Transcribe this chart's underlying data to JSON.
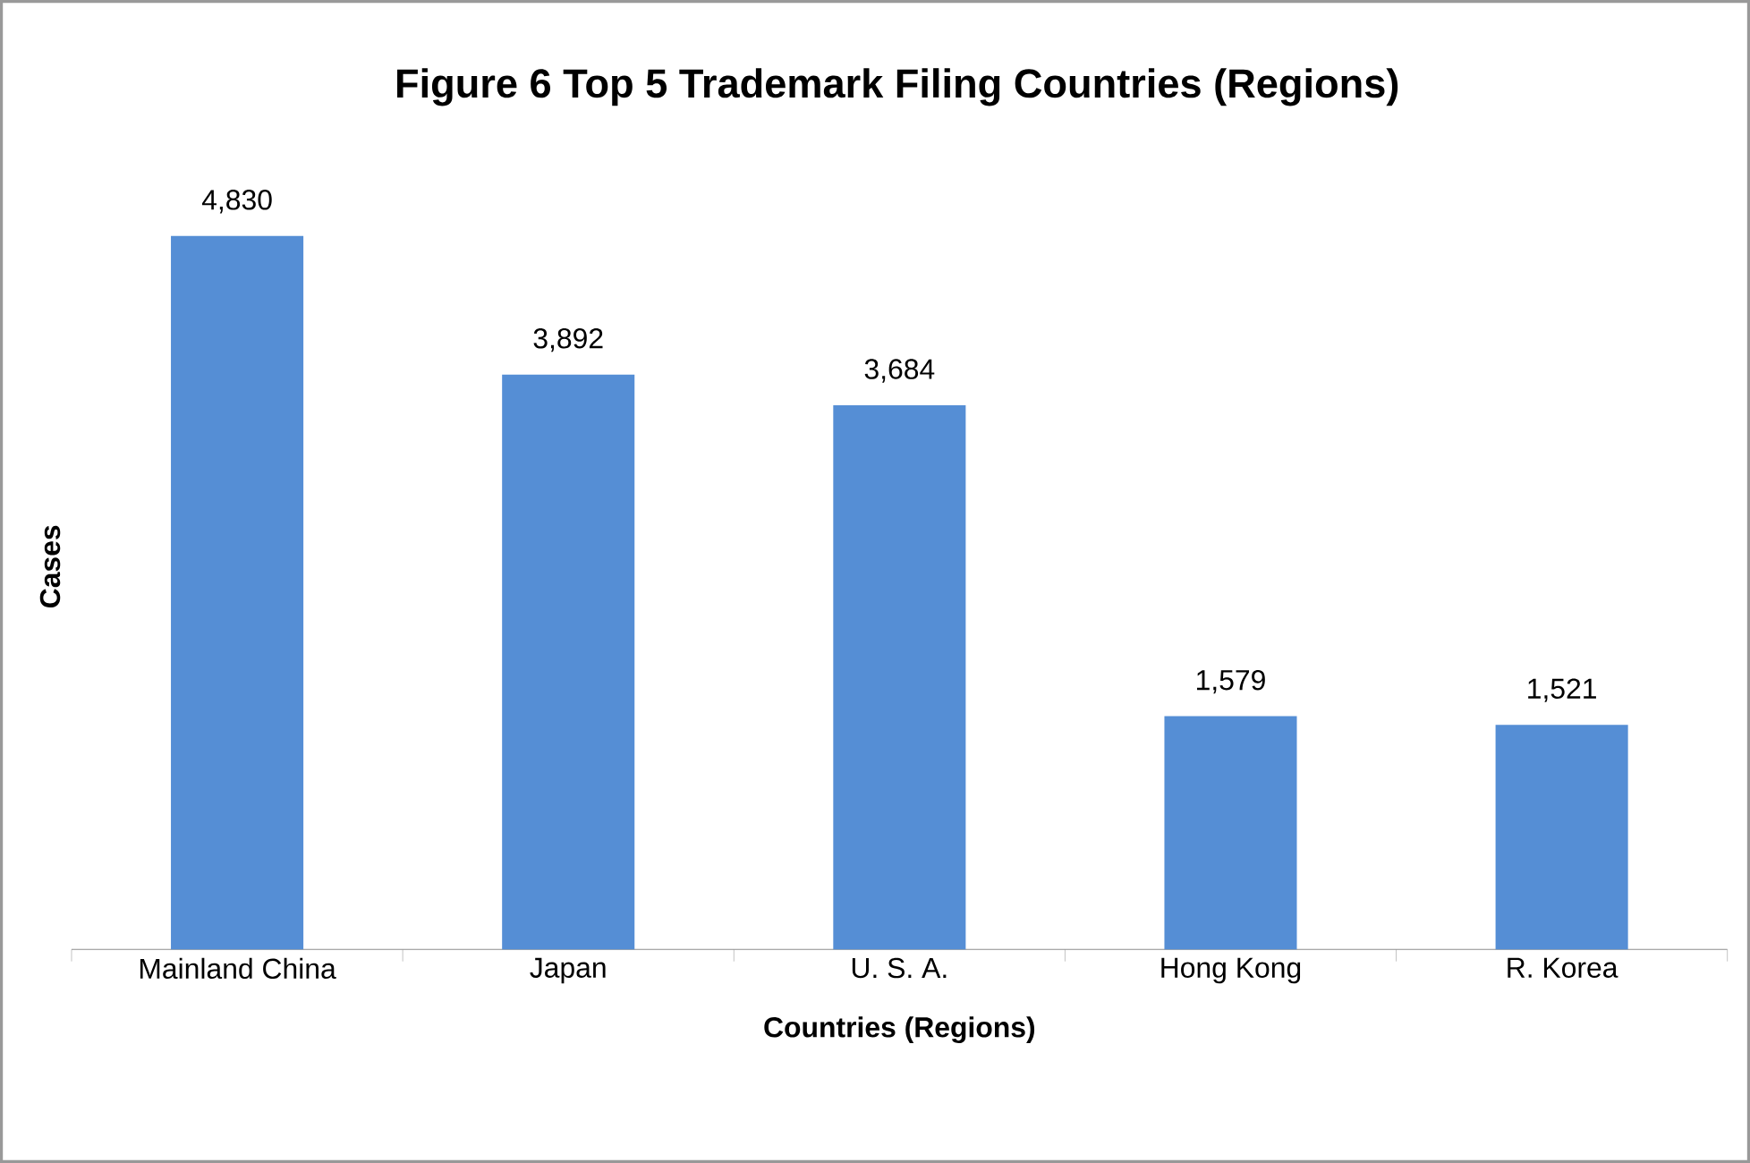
{
  "chart_data": {
    "type": "bar",
    "title": "Figure 6 Top 5 Trademark Filing Countries (Regions)",
    "xlabel": "Countries (Regions)",
    "ylabel": "Cases",
    "categories": [
      "Mainland China",
      "Japan",
      "U. S. A.",
      "Hong Kong",
      "R. Korea"
    ],
    "values": [
      4830,
      3892,
      3684,
      1579,
      1521
    ],
    "value_labels": [
      "4,830",
      "3,892",
      "3,684",
      "1,579",
      "1,521"
    ],
    "color": "#558ed5"
  }
}
